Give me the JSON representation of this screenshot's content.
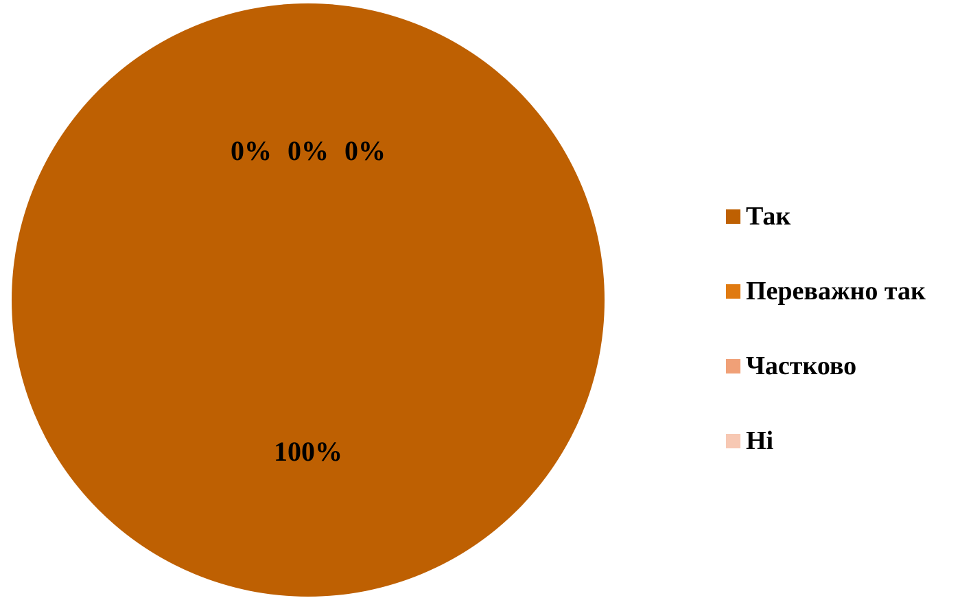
{
  "chart_data": {
    "type": "pie",
    "categories": [
      "Так",
      "Переважно так",
      "Частково",
      "Ні"
    ],
    "values": [
      100,
      0,
      0,
      0
    ],
    "data_labels": [
      "100%",
      "0%",
      "0%",
      "0%"
    ],
    "colors": [
      "#BE6002",
      "#E07A10",
      "#F0A077",
      "#F7C8B3"
    ],
    "title": "",
    "legend_position": "right"
  }
}
